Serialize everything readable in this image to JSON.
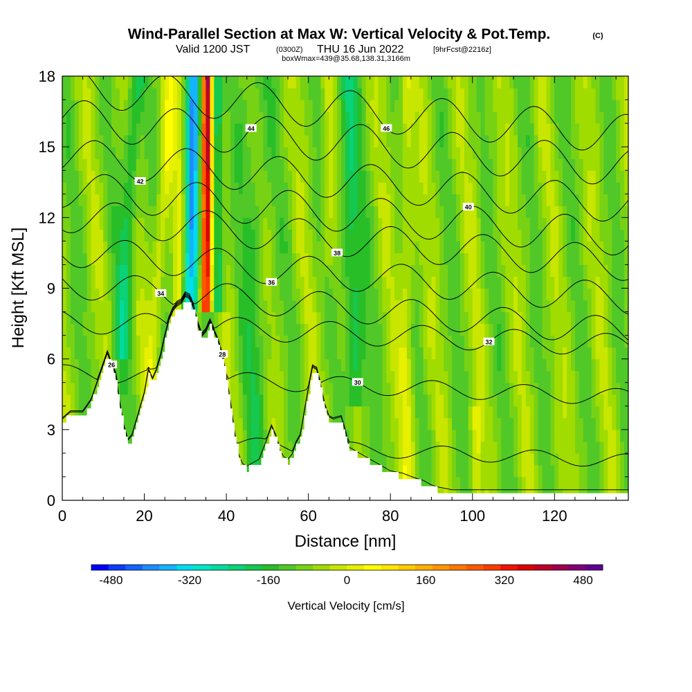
{
  "chart_data": {
    "type": "heatmap",
    "title": "Wind-Parallel Section at Max W: Vertical Velocity & Pot.Temp.",
    "title_mark": "(C)",
    "subtitle": {
      "valid": "Valid 1200 JST",
      "utc": "(0300Z)",
      "date": "THU 16 Jun 2022",
      "fcst": "[9hrFcst@2216z]",
      "box": "boxWmax=439@35.68,138.31,3166m"
    },
    "xlabel": "Distance [nm]",
    "ylabel": "Height [Kft MSL]",
    "xlim": [
      0,
      138
    ],
    "ylim": [
      0,
      18
    ],
    "xticks": [
      0,
      20,
      40,
      60,
      80,
      100,
      120
    ],
    "xtick_labels": [
      "0",
      "20",
      "40",
      "60",
      "80",
      "100",
      "120"
    ],
    "yticks": [
      0,
      3,
      6,
      9,
      12,
      15,
      18
    ],
    "ytick_labels": [
      "0",
      "3",
      "6",
      "9",
      "12",
      "15",
      "18"
    ],
    "colorbar": {
      "label": "Vertical Velocity [cm/s]",
      "min": -520,
      "max": 520,
      "step": 40,
      "tick_values": [
        -480,
        -320,
        -160,
        0,
        160,
        320,
        480
      ],
      "tick_labels": [
        "-480",
        "-320",
        "-160",
        "0",
        "160",
        "320",
        "480"
      ],
      "colors": [
        "#0000ff",
        "#0a3cff",
        "#1464ff",
        "#1e8cff",
        "#14b4ff",
        "#00dcf0",
        "#00e6c8",
        "#00dca0",
        "#0ad278",
        "#14c850",
        "#28be28",
        "#50c828",
        "#78d214",
        "#a0dc00",
        "#c8e600",
        "#e6f000",
        "#ffff00",
        "#ffe600",
        "#ffcc00",
        "#ffb000",
        "#ff9600",
        "#ff7800",
        "#ff5a00",
        "#ff3c00",
        "#f01400",
        "#dc0000",
        "#be0028",
        "#a00050",
        "#800078",
        "#600090"
      ]
    },
    "terrain_kft": [
      [
        0,
        3.3
      ],
      [
        2,
        3.6
      ],
      [
        5,
        3.6
      ],
      [
        7,
        4.1
      ],
      [
        9,
        5.1
      ],
      [
        10,
        5.6
      ],
      [
        11,
        6.1
      ],
      [
        12,
        5.6
      ],
      [
        13,
        5.2
      ],
      [
        14,
        4.0
      ],
      [
        15,
        3.0
      ],
      [
        16,
        2.4
      ],
      [
        17,
        2.6
      ],
      [
        18,
        3.2
      ],
      [
        19,
        3.8
      ],
      [
        20,
        4.4
      ],
      [
        21,
        5.4
      ],
      [
        22,
        5.0
      ],
      [
        23,
        5.4
      ],
      [
        24,
        6.0
      ],
      [
        25,
        6.8
      ],
      [
        26,
        7.5
      ],
      [
        27,
        7.9
      ],
      [
        28,
        8.1
      ],
      [
        29,
        8.2
      ],
      [
        30,
        8.5
      ],
      [
        31,
        8.4
      ],
      [
        32,
        8.0
      ],
      [
        33,
        7.3
      ],
      [
        34,
        6.8
      ],
      [
        35,
        7.0
      ],
      [
        36,
        7.4
      ],
      [
        37,
        7.0
      ],
      [
        38,
        6.6
      ],
      [
        39,
        6.0
      ],
      [
        40,
        5.1
      ],
      [
        41,
        4.0
      ],
      [
        42,
        2.7
      ],
      [
        43,
        1.8
      ],
      [
        44,
        1.4
      ],
      [
        45,
        1.3
      ],
      [
        46,
        1.4
      ],
      [
        48,
        1.6
      ],
      [
        50,
        2.5
      ],
      [
        51,
        3.0
      ],
      [
        52,
        2.6
      ],
      [
        53,
        2.0
      ],
      [
        54,
        1.7
      ],
      [
        55,
        1.6
      ],
      [
        56,
        1.8
      ],
      [
        57,
        2.3
      ],
      [
        58,
        2.6
      ],
      [
        59,
        3.6
      ],
      [
        60,
        4.6
      ],
      [
        61,
        5.5
      ],
      [
        62,
        5.4
      ],
      [
        63,
        4.7
      ],
      [
        64,
        3.9
      ],
      [
        65,
        3.4
      ],
      [
        66,
        3.3
      ],
      [
        68,
        3.4
      ],
      [
        69,
        2.8
      ],
      [
        70,
        2.1
      ],
      [
        72,
        1.9
      ],
      [
        75,
        1.6
      ],
      [
        78,
        1.3
      ],
      [
        80,
        1.1
      ],
      [
        83,
        1.0
      ],
      [
        86,
        0.8
      ],
      [
        88,
        0.7
      ],
      [
        90,
        0.5
      ],
      [
        92,
        0.4
      ],
      [
        95,
        0.3
      ],
      [
        138,
        0.3
      ]
    ],
    "theta_contours": [
      {
        "label": "26",
        "z": 0.5,
        "amp": 0.3
      },
      {
        "label": "28",
        "z": 2.7,
        "amp": 0.5
      },
      {
        "label": "30",
        "z": 5.4,
        "amp": 0.6
      },
      {
        "label": "32",
        "z": 7.6,
        "amp": 0.8
      },
      {
        "label": "34",
        "z": 9.2,
        "amp": 1.0
      },
      {
        "label": "36",
        "z": 10.6,
        "amp": 1.1
      },
      {
        "label": "38",
        "z": 12.1,
        "amp": 1.2
      },
      {
        "label": "40",
        "z": 13.2,
        "amp": 1.3
      },
      {
        "label": "42",
        "z": 14.6,
        "amp": 1.3
      },
      {
        "label": "44",
        "z": 16.2,
        "amp": 1.4
      },
      {
        "label": "46",
        "z": 17.6,
        "amp": 1.4
      }
    ]
  }
}
